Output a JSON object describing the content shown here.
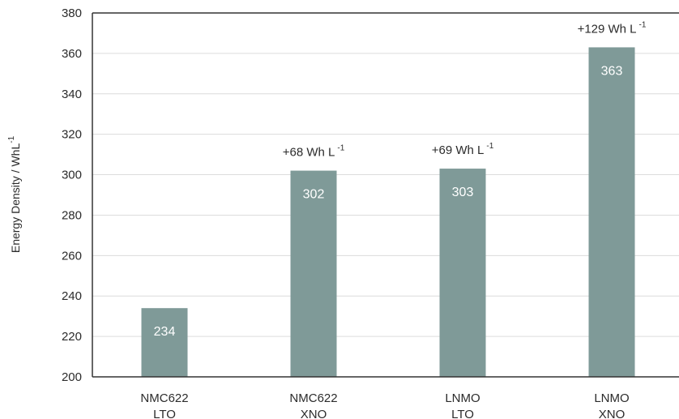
{
  "chart_data": {
    "type": "bar",
    "categories": [
      [
        "NMC622",
        "LTO"
      ],
      [
        "NMC622",
        "XNO"
      ],
      [
        "LNMO",
        "LTO"
      ],
      [
        "LNMO",
        "XNO"
      ]
    ],
    "values": [
      234,
      302,
      303,
      363
    ],
    "value_labels": [
      "234",
      "302",
      "303",
      "363"
    ],
    "annotations": [
      {
        "index": 1,
        "text": "+68 Wh L",
        "sup": "-1"
      },
      {
        "index": 2,
        "text": "+69 Wh L",
        "sup": "-1"
      },
      {
        "index": 3,
        "text": "+129 Wh L",
        "sup": "-1"
      }
    ],
    "ylabel": "Energy Density / WhL",
    "ylabel_sup": "-1",
    "ylim": [
      200,
      380
    ],
    "yticks": [
      200,
      220,
      240,
      260,
      280,
      300,
      320,
      340,
      360,
      380
    ],
    "grid": true,
    "bar_color": "#7f9a98",
    "grid_color": "#dcdcdc",
    "axis_color": "#333333"
  }
}
